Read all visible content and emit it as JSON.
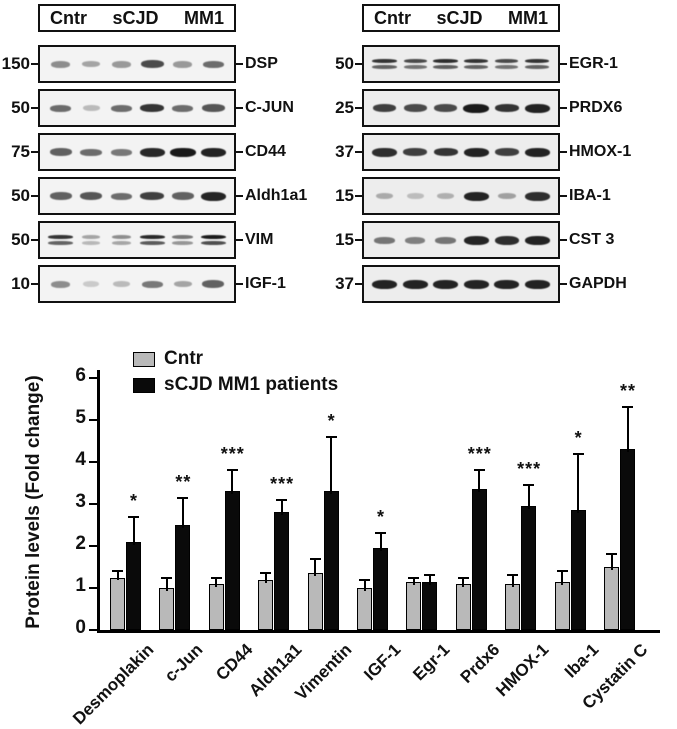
{
  "blots": {
    "columns": [
      {
        "header": [
          "Cntr",
          "sCJD",
          "MM1"
        ],
        "panels": [
          {
            "label": "DSP",
            "marker": "150",
            "bands": 1,
            "lanes": [
              0.45,
              0.35,
              0.4,
              0.75,
              0.4,
              0.6
            ]
          },
          {
            "label": "C-JUN",
            "marker": "50",
            "bands": 1,
            "lanes": [
              0.6,
              0.25,
              0.6,
              0.85,
              0.6,
              0.7
            ]
          },
          {
            "label": "CD44",
            "marker": "75",
            "bands": 1,
            "lanes": [
              0.65,
              0.6,
              0.55,
              0.9,
              0.97,
              0.93
            ]
          },
          {
            "label": "Aldh1a1",
            "marker": "50",
            "bands": 1,
            "lanes": [
              0.65,
              0.7,
              0.6,
              0.8,
              0.65,
              0.92
            ]
          },
          {
            "label": "VIM",
            "marker": "50",
            "bands": 2,
            "lanes": [
              0.85,
              0.35,
              0.45,
              0.9,
              0.55,
              0.97
            ]
          },
          {
            "label": "IGF-1",
            "marker": "10",
            "bands": 1,
            "lanes": [
              0.45,
              0.18,
              0.25,
              0.55,
              0.35,
              0.65
            ]
          }
        ]
      },
      {
        "header": [
          "Cntr",
          "sCJD",
          "MM1"
        ],
        "panels": [
          {
            "label": "EGR-1",
            "marker": "50",
            "bands": 2,
            "lanes": [
              0.85,
              0.75,
              0.88,
              0.85,
              0.75,
              0.85
            ]
          },
          {
            "label": "PRDX6",
            "marker": "25",
            "bands": 1,
            "lanes": [
              0.8,
              0.75,
              0.75,
              0.97,
              0.85,
              0.93
            ]
          },
          {
            "label": "HMOX-1",
            "marker": "37",
            "bands": 1,
            "lanes": [
              0.88,
              0.8,
              0.85,
              0.93,
              0.8,
              0.93
            ]
          },
          {
            "label": "IBA-1",
            "marker": "15",
            "bands": 1,
            "lanes": [
              0.3,
              0.22,
              0.28,
              0.93,
              0.35,
              0.88
            ]
          },
          {
            "label": "CST 3",
            "marker": "15",
            "bands": 1,
            "lanes": [
              0.55,
              0.5,
              0.55,
              0.92,
              0.88,
              0.93
            ]
          },
          {
            "label": "GAPDH",
            "marker": "37",
            "bands": 1,
            "lanes": [
              0.93,
              0.93,
              0.93,
              0.93,
              0.93,
              0.93
            ]
          }
        ]
      }
    ]
  },
  "chart_data": {
    "type": "bar",
    "title": "",
    "ylabel": "Protein levels (Fold change)",
    "xlabel": "",
    "ylim": [
      0,
      6
    ],
    "yticks": [
      0,
      1,
      2,
      3,
      4,
      5,
      6
    ],
    "grid": false,
    "legend_position": "top-left",
    "categories": [
      "Desmoplakin",
      "c-Jun",
      "CD44",
      "Aldh1a1",
      "Vimentin",
      "IGF-1",
      "Egr-1",
      "Prdx6",
      "HMOX-1",
      "Iba-1",
      "Cystatin C"
    ],
    "series": [
      {
        "name": "Cntr",
        "color": "#b9b9b9",
        "values": [
          1.25,
          1.0,
          1.1,
          1.2,
          1.35,
          1.0,
          1.15,
          1.1,
          1.1,
          1.15,
          1.5
        ],
        "errors": [
          0.15,
          0.25,
          0.15,
          0.15,
          0.35,
          0.2,
          0.1,
          0.15,
          0.2,
          0.25,
          0.3
        ]
      },
      {
        "name": "sCJD MM1 patients",
        "color": "#0a0a0a",
        "values": [
          2.1,
          2.5,
          3.3,
          2.8,
          3.3,
          1.95,
          1.15,
          3.35,
          2.95,
          2.85,
          4.3
        ],
        "errors": [
          0.6,
          0.65,
          0.5,
          0.3,
          1.3,
          0.35,
          0.15,
          0.45,
          0.5,
          1.35,
          1.0
        ]
      }
    ],
    "significance": [
      "*",
      "**",
      "***",
      "***",
      "*",
      "*",
      "",
      "***",
      "***",
      "*",
      "**"
    ]
  }
}
